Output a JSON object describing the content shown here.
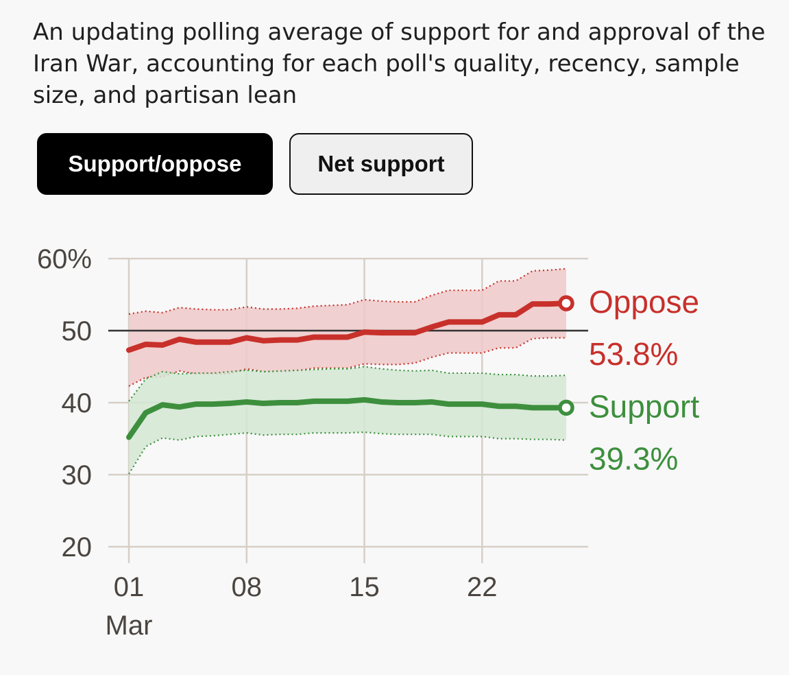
{
  "subtitle": "An updating polling average of support for and approval of the Iran War, accounting for each poll's quality, recency, sample size, and partisan lean",
  "toggle": {
    "active_label": "Support/oppose",
    "inactive_label": "Net support"
  },
  "colors": {
    "oppose": "#c8302b",
    "oppose_band": "#eec9c9",
    "support": "#3d8f3d",
    "support_band": "#d4e8d4",
    "grid": "#d6cfc8",
    "reference_line": "#333333"
  },
  "chart_data": {
    "type": "line",
    "x": [
      1,
      2,
      3,
      4,
      5,
      6,
      7,
      8,
      9,
      10,
      11,
      12,
      13,
      14,
      15,
      16,
      17,
      18,
      19,
      20,
      21,
      22,
      23,
      24,
      25,
      26,
      27
    ],
    "x_ticks": [
      1,
      8,
      15,
      22
    ],
    "x_tick_labels": [
      "01",
      "08",
      "15",
      "22"
    ],
    "x_month_label": "Mar",
    "xlim": [
      1,
      28
    ],
    "ylim": [
      20,
      60
    ],
    "y_ticks": [
      20,
      30,
      40,
      50,
      60
    ],
    "y_tick_labels": [
      "20",
      "30",
      "40",
      "50",
      "60%"
    ],
    "reference_line": 50,
    "grid": true,
    "series": [
      {
        "name": "Oppose",
        "value_label": "53.8%",
        "values": [
          47.3,
          48.1,
          48.0,
          48.8,
          48.4,
          48.4,
          48.4,
          49.0,
          48.6,
          48.7,
          48.7,
          49.1,
          49.1,
          49.1,
          49.8,
          49.7,
          49.7,
          49.7,
          50.5,
          51.2,
          51.2,
          51.2,
          52.2,
          52.2,
          53.7,
          53.7,
          53.8
        ],
        "upper": [
          52.3,
          52.7,
          52.5,
          53.2,
          53.0,
          52.9,
          52.9,
          53.3,
          53.0,
          53.0,
          53.1,
          53.4,
          53.5,
          53.6,
          54.3,
          54.1,
          54.0,
          54.0,
          54.9,
          55.6,
          55.6,
          55.6,
          56.9,
          56.9,
          58.3,
          58.4,
          58.6
        ],
        "lower": [
          42.3,
          43.5,
          43.6,
          44.4,
          44.0,
          44.0,
          44.0,
          44.7,
          44.3,
          44.3,
          44.4,
          44.8,
          44.8,
          44.8,
          45.4,
          45.3,
          45.3,
          45.5,
          46.3,
          46.9,
          46.9,
          46.9,
          47.6,
          47.6,
          48.9,
          49.0,
          49.0
        ]
      },
      {
        "name": "Support",
        "value_label": "39.3%",
        "values": [
          35.2,
          38.6,
          39.7,
          39.4,
          39.8,
          39.8,
          39.9,
          40.1,
          39.9,
          40.0,
          40.0,
          40.2,
          40.2,
          40.2,
          40.4,
          40.1,
          40.0,
          40.0,
          40.1,
          39.8,
          39.8,
          39.8,
          39.5,
          39.5,
          39.3,
          39.3,
          39.3
        ],
        "upper": [
          40.2,
          43.3,
          44.3,
          44.0,
          44.1,
          44.1,
          44.3,
          44.5,
          44.3,
          44.4,
          44.5,
          44.6,
          44.7,
          44.7,
          45.0,
          44.7,
          44.5,
          44.4,
          44.5,
          44.1,
          44.1,
          44.1,
          43.9,
          43.9,
          43.7,
          43.7,
          43.8
        ],
        "lower": [
          30.1,
          33.9,
          35.1,
          34.8,
          35.3,
          35.4,
          35.6,
          35.8,
          35.5,
          35.6,
          35.6,
          35.8,
          35.8,
          35.8,
          35.9,
          35.7,
          35.6,
          35.6,
          35.6,
          35.3,
          35.3,
          35.3,
          35.0,
          35.0,
          34.9,
          34.9,
          34.8
        ]
      }
    ]
  }
}
